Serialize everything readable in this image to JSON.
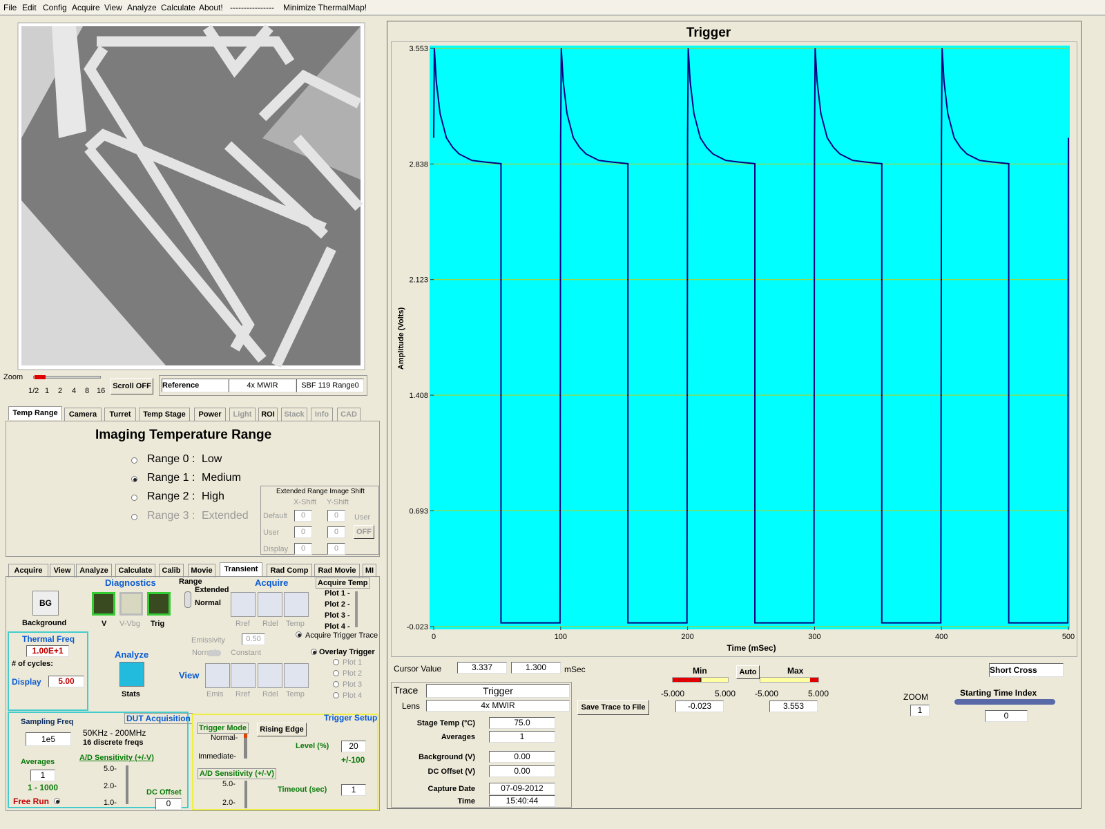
{
  "menu": [
    "File",
    "Edit",
    "Config",
    "Acquire",
    "View",
    "Analyze",
    "Calculate",
    "About!",
    "----------------",
    "Minimize ThermalMap!"
  ],
  "image_panel": {
    "zoom_label": "Zoom",
    "zoom_ticks": [
      "1/2",
      "1",
      "2",
      "4",
      "8",
      "16"
    ],
    "scroll": "Scroll OFF",
    "reference": "Reference",
    "lens": "4x MWIR",
    "range": "SBF 119 Range0"
  },
  "top_tabs": {
    "items": [
      "Temp Range",
      "Camera",
      "Turret",
      "Temp Stage",
      "Power",
      "Light",
      "ROI",
      "Stack",
      "Info",
      "CAD"
    ],
    "active": 0
  },
  "temp_range": {
    "title": "Imaging Temperature Range",
    "options": [
      {
        "range": "Range 0 :",
        "name": "Low"
      },
      {
        "range": "Range 1 :",
        "name": "Medium"
      },
      {
        "range": "Range 2 :",
        "name": "High"
      },
      {
        "range": "Range 3 :",
        "name": "Extended"
      }
    ],
    "selected": 1
  },
  "image_shift": {
    "title": "Extended Range Image Shift",
    "columns": [
      "X-Shift",
      "Y-Shift"
    ],
    "rows": [
      {
        "label": "Default",
        "x": "0",
        "y": "0"
      },
      {
        "label": "User",
        "x": "0",
        "y": "0"
      },
      {
        "label": "Display",
        "x": "0",
        "y": "0"
      }
    ],
    "user_label": "User",
    "user_button": "OFF"
  },
  "bottom_tabs": {
    "items": [
      "Acquire",
      "View",
      "Analyze",
      "Calculate",
      "Calib",
      "Movie",
      "Transient",
      "Rad Comp",
      "Rad Movie",
      "MI"
    ],
    "active": 6
  },
  "transient": {
    "diagnostics": {
      "title": "Diagnostics",
      "bg_icon": "BG",
      "background": "Background",
      "buttons": [
        "V",
        "V-Vbg",
        "Trig"
      ]
    },
    "range_switch": {
      "title": "Range",
      "extended": "Extended",
      "normal": "Normal"
    },
    "acquire": {
      "title": "Acquire",
      "buttons": [
        "Rref",
        "Rdel",
        "Temp"
      ]
    },
    "acquire_temp": {
      "title": "Acquire Temp",
      "plots": [
        "Plot 1 -",
        "Plot 2 -",
        "Plot 3 -",
        "Plot 4 -"
      ]
    },
    "emissivity": {
      "label": "Emissivity",
      "value": "0.50",
      "normal": "Normal",
      "constant": "Constant"
    },
    "acquire_trigger_trace": "Acquire Trigger Trace",
    "overlay": {
      "title": "Overlay Trigger",
      "plots": [
        "Plot 1",
        "Plot 2",
        "Plot 3",
        "Plot 4"
      ]
    },
    "thermal_freq": {
      "title": "Thermal Freq",
      "value": "1.00E+1",
      "cycles": "# of cycles:",
      "display": "Display",
      "display_value": "5.00"
    },
    "analyze": {
      "title": "Analyze",
      "stats": "Stats"
    },
    "view": {
      "title": "View",
      "buttons": [
        "Emis",
        "Rref",
        "Rdel",
        "Temp"
      ]
    },
    "dut": {
      "title": "DUT Acquisition",
      "sampling_label": "Sampling Freq",
      "sampling": "1e5",
      "range": "50KHz - 200MHz",
      "freqs": "16 discrete freqs",
      "averages_label": "Averages",
      "averages": "1",
      "averages_range": "1 - 1000",
      "ad_label": "A/D Sensitivity (+/-V)",
      "ad_ticks": [
        "5.0-",
        "2.0-",
        "1.0-"
      ],
      "dc_label": "DC Offset",
      "dc": "0",
      "free_run": "Free Run"
    },
    "trigger": {
      "title": "Trigger Setup",
      "mode_label": "Trigger Mode",
      "normal": "Normal-",
      "immediate": "Immediate-",
      "edge": "Rising Edge",
      "level_label": "Level (%)",
      "level": "20",
      "level_range": "+/-100",
      "ad_label": "A/D Sensitivity (+/-V)",
      "ad_ticks": [
        "5.0-",
        "2.0-"
      ],
      "timeout_label": "Timeout (sec)",
      "timeout": "1"
    }
  },
  "chart_data": {
    "type": "line",
    "title": "Trigger",
    "x_label": "Time (mSec)",
    "y_label": "Amplitude (Volts)",
    "color": "#000080",
    "background": "#00ffff",
    "grid_color": "#c8c800",
    "grid": true,
    "x": [
      0,
      0.5,
      2,
      5,
      10,
      15,
      20,
      30,
      40,
      53,
      53,
      99.5,
      100,
      100.5,
      102,
      105,
      110,
      115,
      120,
      130,
      140,
      153,
      153,
      199.5,
      200,
      200.5,
      202,
      205,
      210,
      215,
      220,
      230,
      240,
      253,
      253,
      299.5,
      300,
      300.5,
      302,
      305,
      310,
      315,
      320,
      330,
      340,
      353,
      353,
      399.5,
      400,
      400.5,
      402,
      405,
      410,
      415,
      420,
      430,
      440,
      453,
      453,
      499.5,
      500
    ],
    "values": [
      3.0,
      3.553,
      3.35,
      3.15,
      3.0,
      2.94,
      2.9,
      2.86,
      2.85,
      2.84,
      0.0,
      0.0,
      3.0,
      3.553,
      3.35,
      3.15,
      3.0,
      2.94,
      2.9,
      2.86,
      2.85,
      2.84,
      0.0,
      0.0,
      3.0,
      3.553,
      3.35,
      3.15,
      3.0,
      2.94,
      2.9,
      2.86,
      2.85,
      2.84,
      0.0,
      0.0,
      3.0,
      3.553,
      3.35,
      3.15,
      3.0,
      2.94,
      2.9,
      2.86,
      2.85,
      2.84,
      0.0,
      0.0,
      3.0,
      3.553,
      3.35,
      3.15,
      3.0,
      2.94,
      2.9,
      2.86,
      2.85,
      2.84,
      0.0,
      0.0,
      3.0
    ],
    "xlim": [
      0,
      500
    ],
    "xticks": [
      0,
      100,
      200,
      300,
      400,
      500
    ],
    "ylim": [
      -0.023,
      3.553
    ],
    "yticks": [
      -0.023,
      0.693,
      1.408,
      2.123,
      2.838,
      3.553
    ]
  },
  "chart_controls": {
    "cursor_label": "Cursor Value",
    "cursor_y": "3.337",
    "cursor_x": "1.300",
    "cursor_unit": "mSec",
    "min_label": "Min",
    "max_label": "Max",
    "auto": "Auto",
    "min_range": [
      "-5.000",
      "5.000"
    ],
    "max_range": [
      "-5.000",
      "5.000"
    ],
    "cross": "Short Cross",
    "zoom_label": "ZOOM",
    "zoom": "1",
    "time_index_label": "Starting Time Index",
    "time_index": "0",
    "save": "Save Trace to File"
  },
  "trace_info": {
    "trace_label": "Trace",
    "trace": "Trigger",
    "lens_label": "Lens",
    "lens": "4x MWIR",
    "rows": [
      {
        "label": "Stage Temp  (°C)",
        "value": "75.0"
      },
      {
        "label": "Averages",
        "value": "1"
      },
      {
        "label": "Background (V)",
        "value": "0.00"
      },
      {
        "label": "DC Offset (V)",
        "value": "0.00"
      },
      {
        "label": "Capture Date",
        "value": "07-09-2012"
      },
      {
        "label": "Time",
        "value": "15:40:44"
      }
    ]
  }
}
